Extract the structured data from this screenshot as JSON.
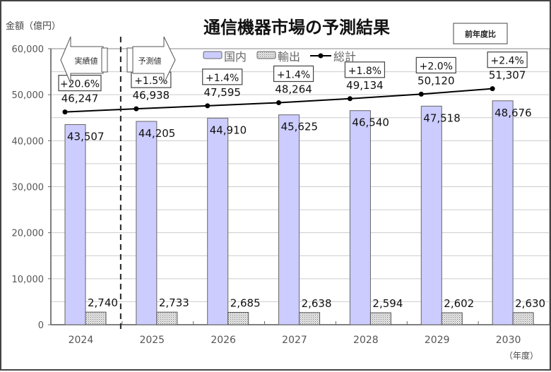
{
  "chart_data": {
    "type": "bar",
    "title": "通信機器市場の予測結果",
    "ylabel": "金額（億円）",
    "xlabel": "（年度）",
    "ylim": [
      0,
      60000
    ],
    "yticks": [
      0,
      10000,
      20000,
      30000,
      40000,
      50000,
      60000
    ],
    "ytick_labels": [
      "0",
      "10,000",
      "20,000",
      "30,000",
      "40,000",
      "50,000",
      "60,000"
    ],
    "grid": true,
    "categories": [
      "2024",
      "2025",
      "2026",
      "2027",
      "2028",
      "2029",
      "2030"
    ],
    "series": [
      {
        "name": "国内",
        "type": "bar",
        "color": "#ccccff",
        "values": [
          43507,
          44205,
          44910,
          45625,
          46540,
          47518,
          48676
        ],
        "labels": [
          "43,507",
          "44,205",
          "44,910",
          "45,625",
          "46,540",
          "47,518",
          "48,676"
        ]
      },
      {
        "name": "輸出",
        "type": "bar",
        "color": "#c8c8c8",
        "pattern": "dotted",
        "values": [
          2740,
          2733,
          2685,
          2638,
          2594,
          2602,
          2630
        ],
        "labels": [
          "2,740",
          "2,733",
          "2,685",
          "2,638",
          "2,594",
          "2,602",
          "2,630"
        ]
      },
      {
        "name": "総計",
        "type": "line",
        "color": "#000000",
        "values": [
          46247,
          46938,
          47595,
          48264,
          49134,
          50120,
          51307
        ],
        "labels": [
          "46,247",
          "46,938",
          "47,595",
          "48,264",
          "49,134",
          "50,120",
          "51,307"
        ]
      }
    ],
    "yoy_growth": [
      "+20.6%",
      "+1.5%",
      "+1.4%",
      "+1.4%",
      "+1.8%",
      "+2.0%",
      "+2.4%"
    ],
    "yoy_legend": "前年度比",
    "annotations": {
      "actual_label": "実績値",
      "forecast_label": "予測値",
      "divider_between": [
        "2024",
        "2025"
      ]
    },
    "legend_position": "top"
  }
}
